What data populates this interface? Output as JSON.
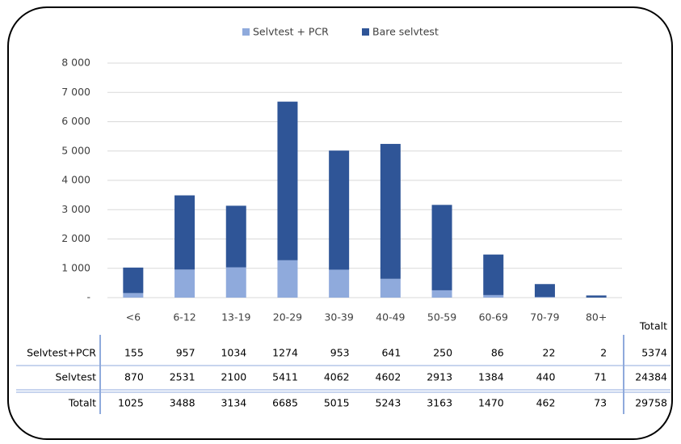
{
  "chart_data": {
    "type": "bar",
    "stacked": true,
    "categories": [
      "<6",
      "6-12",
      "13-19",
      "20-29",
      "30-39",
      "40-49",
      "50-59",
      "60-69",
      "70-79",
      "80+"
    ],
    "series": [
      {
        "name": "Selvtest + PCR",
        "color": "#8faadc",
        "values": [
          155,
          957,
          1034,
          1274,
          953,
          641,
          250,
          86,
          22,
          2
        ]
      },
      {
        "name": "Bare selvtest",
        "color": "#2f5597",
        "values": [
          870,
          2531,
          2100,
          5411,
          4062,
          4602,
          2913,
          1384,
          440,
          71
        ]
      }
    ],
    "ylim": [
      0,
      8000
    ],
    "yticks": [
      {
        "value": 0,
        "label": "-"
      },
      {
        "value": 1000,
        "label": "1 000"
      },
      {
        "value": 2000,
        "label": "2 000"
      },
      {
        "value": 3000,
        "label": "3 000"
      },
      {
        "value": 4000,
        "label": "4 000"
      },
      {
        "value": 5000,
        "label": "5 000"
      },
      {
        "value": 6000,
        "label": "6 000"
      },
      {
        "value": 7000,
        "label": "7 000"
      },
      {
        "value": 8000,
        "label": "8 000"
      }
    ],
    "grid": true,
    "legend": "top"
  },
  "table": {
    "header": "Totalt",
    "rows": [
      {
        "label": "Selvtest+PCR",
        "values": [
          155,
          957,
          1034,
          1274,
          953,
          641,
          250,
          86,
          22,
          2
        ],
        "total": 5374
      },
      {
        "label": "Selvtest",
        "values": [
          870,
          2531,
          2100,
          5411,
          4062,
          4602,
          2913,
          1384,
          440,
          71
        ],
        "total": 24384
      },
      {
        "label": "Totalt",
        "values": [
          1025,
          3488,
          3134,
          6685,
          5015,
          5243,
          3163,
          1470,
          462,
          73
        ],
        "total": 29758
      }
    ]
  }
}
